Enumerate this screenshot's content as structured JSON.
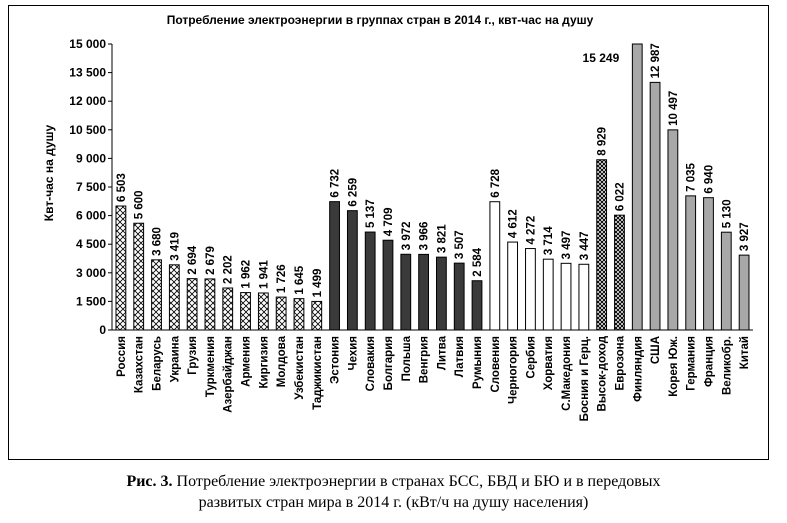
{
  "caption": {
    "fig_label": "Рис. 3.",
    "line1": "Потребление электроэнергии в странах БСС, БВД и БЮ и в передовых",
    "line2": "развитых стран мира в 2014 г. (кВт/ч на душу населения)"
  },
  "chart_data": {
    "type": "bar",
    "title": "Потребление электроэнергии в группах стран в 2014 г., квт-час на душу",
    "xlabel": "",
    "ylabel": "Квт-час на душу",
    "ylim": [
      0,
      15000
    ],
    "yticks": [
      0,
      1500,
      3000,
      4500,
      6000,
      7500,
      9000,
      10500,
      12000,
      13500,
      15000
    ],
    "ytick_labels": [
      "0",
      "1 500",
      "3 000",
      "4 500",
      "6 000",
      "7 500",
      "9 000",
      "10 500",
      "12 000",
      "13 500",
      "15 000"
    ],
    "grid": false,
    "categories": [
      "Россия",
      "Казахстан",
      "Беларусь",
      "Украина",
      "Грузия",
      "Туркмения",
      "Азербайджан",
      "Армения",
      "Киргизия",
      "Молдова",
      "Узбекистан",
      "Таджикистан",
      "Эстония",
      "Чехия",
      "Словакия",
      "Болгария",
      "Польша",
      "Венгрия",
      "Литва",
      "Латвия",
      "Румыния",
      "Словения",
      "Черногория",
      "Сербия",
      "Хорватия",
      "С.Македония",
      "Босния и Герц.",
      "Высок-доход",
      "Еврозона",
      "Финляндия",
      "США",
      "Корея Юж.",
      "Германия",
      "Франция",
      "Великобр.",
      "Китай"
    ],
    "values": [
      6503,
      5600,
      3680,
      3419,
      2694,
      2679,
      2202,
      1962,
      1941,
      1726,
      1645,
      1499,
      6732,
      6259,
      5137,
      4709,
      3972,
      3966,
      3821,
      3507,
      2584,
      6728,
      4612,
      4272,
      3714,
      3497,
      3447,
      8929,
      6022,
      15249,
      12987,
      10497,
      7035,
      6940,
      5130,
      3927
    ],
    "value_labels": [
      "6 503",
      "5 600",
      "3 680",
      "3 419",
      "2 694",
      "2 679",
      "2 202",
      "1 962",
      "1 941",
      "1 726",
      "1 645",
      "1 499",
      "6 732",
      "6 259",
      "5 137",
      "4 709",
      "3 972",
      "3 966",
      "3 821",
      "3 507",
      "2 584",
      "6 728",
      "4 612",
      "4 272",
      "3 714",
      "3 497",
      "3 447",
      "8 929",
      "6 022",
      "15 249",
      "12 987",
      "10 497",
      "7 035",
      "6 940",
      "5 130",
      "3 927"
    ],
    "groups": [
      "cis",
      "cis",
      "cis",
      "cis",
      "cis",
      "cis",
      "cis",
      "cis",
      "cis",
      "cis",
      "cis",
      "cis",
      "east",
      "east",
      "east",
      "east",
      "east",
      "east",
      "east",
      "east",
      "east",
      "balkan",
      "balkan",
      "balkan",
      "balkan",
      "balkan",
      "balkan",
      "avg",
      "avg",
      "dev",
      "dev",
      "dev",
      "dev",
      "dev",
      "dev",
      "dev"
    ],
    "group_colors": {
      "cis": "#ffffff",
      "east": "#3a3a3a",
      "balkan": "#ffffff",
      "avg": "#555555",
      "dev": "#a8a8a8"
    },
    "group_patterns": {
      "cis": "diag-cross",
      "east": "solid",
      "balkan": "solid",
      "avg": "diag-cross",
      "dev": "solid"
    }
  }
}
